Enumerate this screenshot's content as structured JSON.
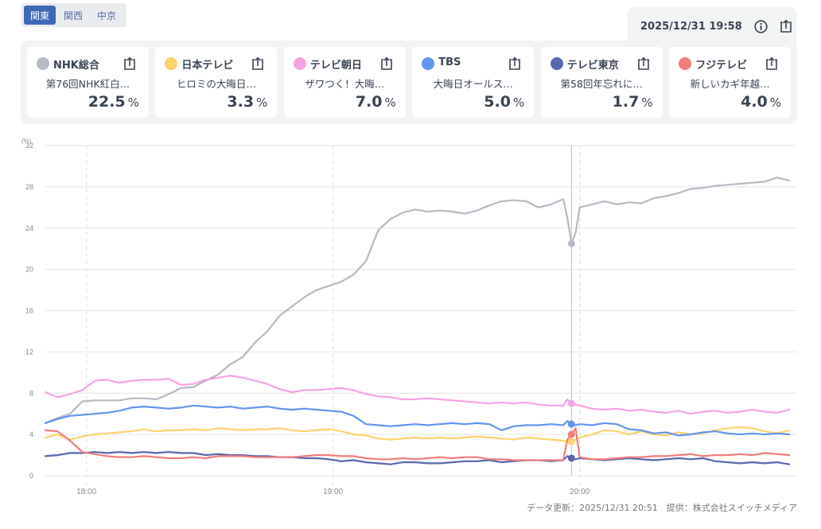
{
  "region_tabs": [
    {
      "label": "関東",
      "active": true
    },
    {
      "label": "関西",
      "active": false
    },
    {
      "label": "中京",
      "active": false
    }
  ],
  "header": {
    "datetime": "2025/12/31 19:58",
    "info_icon": "info-icon",
    "share_icon": "share-icon"
  },
  "channels": [
    {
      "name": "NHK総合",
      "program": "第76回NHK紅白…",
      "value": "22.5",
      "unit": "%",
      "color": "#b6bac3"
    },
    {
      "name": "日本テレビ",
      "program": "ヒロミの大晦日…",
      "value": "3.3",
      "unit": "%",
      "color": "#fdd36f"
    },
    {
      "name": "テレビ朝日",
      "program": "ザワつく！大晦…",
      "value": "7.0",
      "unit": "%",
      "color": "#f4a3e2"
    },
    {
      "name": "TBS",
      "program": "大晦日オールス…",
      "value": "5.0",
      "unit": "%",
      "color": "#6495ed"
    },
    {
      "name": "テレビ東京",
      "program": "第58回年忘れに…",
      "value": "1.7",
      "unit": "%",
      "color": "#5767ae"
    },
    {
      "name": "フジテレビ",
      "program": "新しいカギ年越…",
      "value": "4.0",
      "unit": "%",
      "color": "#f07c7c"
    }
  ],
  "footer": {
    "updated": "データ更新：2025/12/31 20:51",
    "provider": "提供：株式会社スイッチメディア"
  },
  "chart_data": {
    "type": "line",
    "title": "",
    "ylabel": "(%)",
    "xlabel": "",
    "ylim": [
      0,
      32
    ],
    "yticks": [
      "0",
      "4",
      "8",
      "12",
      "16",
      "20",
      "24",
      "28",
      "32"
    ],
    "xticks": [
      {
        "label": "18:00",
        "minute": 10
      },
      {
        "label": "19:00",
        "minute": 70
      },
      {
        "label": "20:00",
        "minute": 130
      }
    ],
    "x_start": "17:50",
    "x_unit": "minutes since 17:50",
    "cursor": {
      "label": "19:58",
      "minute": 128
    },
    "grid": true,
    "x": [
      0,
      3,
      6,
      9,
      12,
      15,
      18,
      21,
      24,
      27,
      30,
      33,
      36,
      39,
      42,
      45,
      48,
      51,
      54,
      57,
      60,
      63,
      66,
      69,
      72,
      75,
      78,
      81,
      84,
      87,
      90,
      93,
      96,
      99,
      102,
      105,
      108,
      111,
      114,
      117,
      120,
      123,
      126,
      127,
      128,
      129,
      130,
      133,
      136,
      139,
      142,
      145,
      148,
      151,
      154,
      157,
      160,
      163,
      166,
      169,
      172,
      175,
      178,
      181
    ],
    "series": [
      {
        "name": "NHK総合",
        "color": "#b6bac3",
        "values": [
          5.1,
          5.6,
          6.0,
          7.2,
          7.3,
          7.3,
          7.3,
          7.5,
          7.5,
          7.4,
          7.9,
          8.5,
          8.6,
          9.2,
          9.8,
          10.8,
          11.5,
          12.9,
          14.0,
          15.5,
          16.4,
          17.3,
          18.0,
          18.4,
          18.8,
          19.5,
          20.8,
          23.8,
          24.9,
          25.5,
          25.8,
          25.6,
          25.7,
          25.6,
          25.4,
          25.7,
          26.2,
          26.6,
          26.7,
          26.6,
          26.0,
          26.3,
          26.8,
          25.0,
          22.5,
          23.5,
          26.0,
          26.3,
          26.6,
          26.3,
          26.5,
          26.4,
          26.9,
          27.1,
          27.4,
          27.8,
          27.9,
          28.1,
          28.2,
          28.3,
          28.4,
          28.5,
          28.9,
          28.6
        ]
      },
      {
        "name": "日本テレビ",
        "color": "#fdd36f",
        "values": [
          3.7,
          4.0,
          3.5,
          3.8,
          4.0,
          4.1,
          4.2,
          4.3,
          4.5,
          4.3,
          4.4,
          4.4,
          4.5,
          4.4,
          4.6,
          4.5,
          4.4,
          4.5,
          4.5,
          4.6,
          4.4,
          4.3,
          4.4,
          4.5,
          4.3,
          4.0,
          3.9,
          3.6,
          3.5,
          3.6,
          3.7,
          3.6,
          3.7,
          3.6,
          3.7,
          3.8,
          3.7,
          3.6,
          3.5,
          3.7,
          3.6,
          3.5,
          3.4,
          3.3,
          3.3,
          3.5,
          3.7,
          4.0,
          4.4,
          4.3,
          4.0,
          4.3,
          4.0,
          3.9,
          4.2,
          4.0,
          4.1,
          4.4,
          4.6,
          4.7,
          4.6,
          4.3,
          4.1,
          4.4
        ]
      },
      {
        "name": "テレビ朝日",
        "color": "#f4a3e2",
        "values": [
          8.1,
          7.6,
          7.9,
          8.3,
          9.2,
          9.3,
          9.0,
          9.2,
          9.3,
          9.3,
          9.4,
          8.8,
          8.9,
          9.3,
          9.5,
          9.7,
          9.5,
          9.2,
          8.9,
          8.4,
          8.1,
          8.3,
          8.3,
          8.4,
          8.5,
          8.3,
          7.9,
          7.7,
          7.6,
          7.4,
          7.4,
          7.5,
          7.4,
          7.3,
          7.2,
          7.1,
          7.0,
          7.1,
          7.0,
          7.1,
          6.9,
          6.8,
          6.8,
          7.4,
          7.0,
          6.9,
          6.8,
          6.5,
          6.4,
          6.5,
          6.3,
          6.4,
          6.2,
          6.1,
          6.3,
          6.0,
          6.2,
          6.3,
          6.1,
          6.2,
          6.4,
          6.2,
          6.1,
          6.4
        ]
      },
      {
        "name": "TBS",
        "color": "#6495ed",
        "values": [
          5.1,
          5.5,
          5.8,
          5.9,
          6.0,
          6.1,
          6.3,
          6.6,
          6.7,
          6.6,
          6.5,
          6.6,
          6.8,
          6.7,
          6.6,
          6.7,
          6.5,
          6.6,
          6.7,
          6.5,
          6.4,
          6.5,
          6.4,
          6.3,
          6.2,
          5.8,
          5.0,
          4.9,
          4.8,
          4.9,
          5.0,
          4.9,
          5.0,
          5.1,
          5.0,
          5.1,
          5.0,
          4.4,
          4.8,
          4.9,
          4.9,
          5.0,
          4.9,
          5.3,
          5.0,
          4.9,
          5.0,
          4.9,
          5.1,
          5.0,
          4.5,
          4.4,
          4.1,
          4.2,
          3.9,
          4.0,
          4.2,
          4.3,
          4.1,
          4.0,
          4.1,
          4.0,
          4.1,
          4.0
        ]
      },
      {
        "name": "テレビ東京",
        "color": "#5767ae",
        "values": [
          1.9,
          2.0,
          2.2,
          2.2,
          2.3,
          2.2,
          2.3,
          2.2,
          2.3,
          2.2,
          2.3,
          2.2,
          2.2,
          2.0,
          2.1,
          2.0,
          2.0,
          1.9,
          1.9,
          1.8,
          1.8,
          1.7,
          1.7,
          1.6,
          1.4,
          1.5,
          1.3,
          1.2,
          1.1,
          1.3,
          1.3,
          1.2,
          1.2,
          1.3,
          1.4,
          1.4,
          1.5,
          1.3,
          1.4,
          1.5,
          1.5,
          1.4,
          1.5,
          1.9,
          1.7,
          1.6,
          1.7,
          1.6,
          1.5,
          1.6,
          1.7,
          1.6,
          1.5,
          1.6,
          1.7,
          1.6,
          1.7,
          1.4,
          1.3,
          1.2,
          1.3,
          1.2,
          1.3,
          1.1
        ]
      },
      {
        "name": "フジテレビ",
        "color": "#f07c7c",
        "values": [
          4.4,
          4.3,
          3.4,
          2.3,
          2.1,
          1.9,
          1.8,
          1.8,
          1.9,
          1.8,
          1.7,
          1.7,
          1.8,
          1.7,
          1.9,
          1.9,
          1.9,
          1.8,
          1.8,
          1.8,
          1.8,
          1.9,
          2.0,
          2.0,
          1.9,
          1.9,
          1.7,
          1.6,
          1.6,
          1.7,
          1.6,
          1.7,
          1.8,
          1.7,
          1.8,
          1.8,
          1.6,
          1.6,
          1.5,
          1.5,
          1.5,
          1.5,
          1.5,
          3.5,
          4.0,
          4.6,
          1.8,
          1.6,
          1.6,
          1.7,
          1.8,
          1.8,
          1.9,
          1.9,
          2.0,
          2.1,
          1.9,
          2.0,
          2.0,
          2.1,
          2.0,
          2.2,
          2.1,
          2.0
        ]
      }
    ]
  }
}
